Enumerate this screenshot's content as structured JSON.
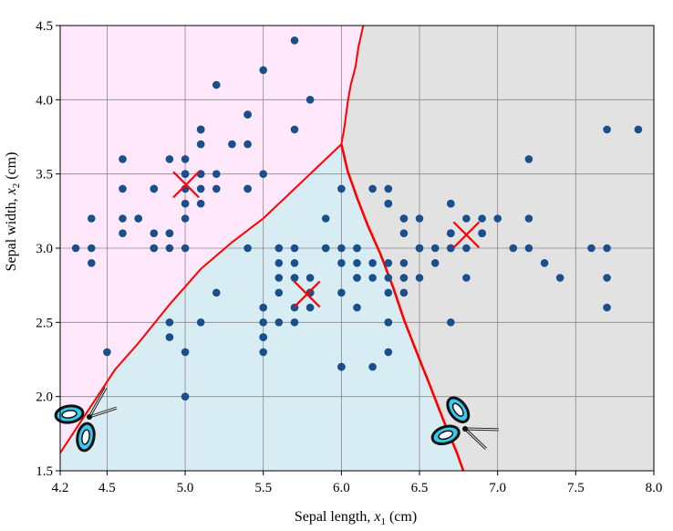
{
  "chart_data": {
    "type": "scatter",
    "title": "",
    "xlabel": {
      "main": "Sepal length, ",
      "var": "x",
      "sub": "1",
      "unit": " (cm)"
    },
    "ylabel": {
      "main": "Sepal width, ",
      "var": "x",
      "sub": "2",
      "unit": " (cm)"
    },
    "xlim": [
      4.2,
      8.0
    ],
    "ylim": [
      1.5,
      4.5
    ],
    "xticks": [
      4.2,
      4.5,
      5.0,
      5.5,
      6.0,
      6.5,
      7.0,
      7.5,
      8.0
    ],
    "xtick_labels": [
      "4.2",
      "4.5",
      "5.0",
      "5.5",
      "6.0",
      "6.5",
      "7.0",
      "7.5",
      "8.0"
    ],
    "yticks": [
      1.5,
      2.0,
      2.5,
      3.0,
      3.5,
      4.0,
      4.5
    ],
    "ytick_labels": [
      "1.5",
      "2.0",
      "2.5",
      "3.0",
      "3.5",
      "4.0",
      "4.5"
    ],
    "grid": true,
    "colors": {
      "region_setosa": "#ffe8fb",
      "region_versicolor": "#d8ecf3",
      "region_virginica": "#e2e2e2",
      "points": "#1a4f8e",
      "boundary": "#ff0000",
      "centroid": "#ff0000",
      "grid": "#888888",
      "scissors_handle": "#3ac9ee"
    },
    "points": [
      [
        5.1,
        3.5
      ],
      [
        4.9,
        3.0
      ],
      [
        4.7,
        3.2
      ],
      [
        4.6,
        3.1
      ],
      [
        5.0,
        3.6
      ],
      [
        5.4,
        3.9
      ],
      [
        4.6,
        3.4
      ],
      [
        5.0,
        3.4
      ],
      [
        4.4,
        2.9
      ],
      [
        4.9,
        3.1
      ],
      [
        5.4,
        3.7
      ],
      [
        4.8,
        3.4
      ],
      [
        4.8,
        3.0
      ],
      [
        4.3,
        3.0
      ],
      [
        5.8,
        4.0
      ],
      [
        5.7,
        4.4
      ],
      [
        5.4,
        3.9
      ],
      [
        5.1,
        3.5
      ],
      [
        5.7,
        3.8
      ],
      [
        5.1,
        3.8
      ],
      [
        5.4,
        3.4
      ],
      [
        5.1,
        3.7
      ],
      [
        4.6,
        3.6
      ],
      [
        5.1,
        3.3
      ],
      [
        4.8,
        3.4
      ],
      [
        5.0,
        3.0
      ],
      [
        5.0,
        3.4
      ],
      [
        5.2,
        3.5
      ],
      [
        5.2,
        3.4
      ],
      [
        4.7,
        3.2
      ],
      [
        4.8,
        3.1
      ],
      [
        5.4,
        3.4
      ],
      [
        5.2,
        4.1
      ],
      [
        5.5,
        4.2
      ],
      [
        4.9,
        3.1
      ],
      [
        5.0,
        3.2
      ],
      [
        5.5,
        3.5
      ],
      [
        4.9,
        3.6
      ],
      [
        4.4,
        3.0
      ],
      [
        5.1,
        3.4
      ],
      [
        5.0,
        3.5
      ],
      [
        4.5,
        2.3
      ],
      [
        4.4,
        3.2
      ],
      [
        5.0,
        3.5
      ],
      [
        5.1,
        3.8
      ],
      [
        4.8,
        3.0
      ],
      [
        5.1,
        3.8
      ],
      [
        4.6,
        3.2
      ],
      [
        5.3,
        3.7
      ],
      [
        5.0,
        3.3
      ],
      [
        7.0,
        3.2
      ],
      [
        6.4,
        3.2
      ],
      [
        6.9,
        3.1
      ],
      [
        5.5,
        2.3
      ],
      [
        6.5,
        2.8
      ],
      [
        5.7,
        2.8
      ],
      [
        6.3,
        3.3
      ],
      [
        4.9,
        2.4
      ],
      [
        6.6,
        2.9
      ],
      [
        5.2,
        2.7
      ],
      [
        5.0,
        2.0
      ],
      [
        5.9,
        3.0
      ],
      [
        6.0,
        2.2
      ],
      [
        6.1,
        2.9
      ],
      [
        5.6,
        2.9
      ],
      [
        6.7,
        3.1
      ],
      [
        5.6,
        3.0
      ],
      [
        5.8,
        2.7
      ],
      [
        6.2,
        2.2
      ],
      [
        5.6,
        2.5
      ],
      [
        5.9,
        3.2
      ],
      [
        6.1,
        2.8
      ],
      [
        6.3,
        2.5
      ],
      [
        6.1,
        2.8
      ],
      [
        6.4,
        2.9
      ],
      [
        6.6,
        3.0
      ],
      [
        6.8,
        2.8
      ],
      [
        6.7,
        3.0
      ],
      [
        6.0,
        2.9
      ],
      [
        5.7,
        2.6
      ],
      [
        5.5,
        2.4
      ],
      [
        5.5,
        2.4
      ],
      [
        5.8,
        2.7
      ],
      [
        6.0,
        2.7
      ],
      [
        5.4,
        3.0
      ],
      [
        6.0,
        3.4
      ],
      [
        6.7,
        3.1
      ],
      [
        6.3,
        2.3
      ],
      [
        5.6,
        3.0
      ],
      [
        5.5,
        2.5
      ],
      [
        5.5,
        2.6
      ],
      [
        6.1,
        3.0
      ],
      [
        5.8,
        2.6
      ],
      [
        5.0,
        2.3
      ],
      [
        5.6,
        2.7
      ],
      [
        5.7,
        3.0
      ],
      [
        5.7,
        2.9
      ],
      [
        6.2,
        2.9
      ],
      [
        5.1,
        2.5
      ],
      [
        5.7,
        2.8
      ],
      [
        6.3,
        3.3
      ],
      [
        5.8,
        2.7
      ],
      [
        7.1,
        3.0
      ],
      [
        6.3,
        2.9
      ],
      [
        6.5,
        3.0
      ],
      [
        7.6,
        3.0
      ],
      [
        4.9,
        2.5
      ],
      [
        7.3,
        2.9
      ],
      [
        6.7,
        2.5
      ],
      [
        7.2,
        3.6
      ],
      [
        6.5,
        3.2
      ],
      [
        6.4,
        2.7
      ],
      [
        6.8,
        3.0
      ],
      [
        5.7,
        2.5
      ],
      [
        5.8,
        2.8
      ],
      [
        6.4,
        3.2
      ],
      [
        6.5,
        3.0
      ],
      [
        7.7,
        3.8
      ],
      [
        7.7,
        2.6
      ],
      [
        6.0,
        2.2
      ],
      [
        6.9,
        3.2
      ],
      [
        5.6,
        2.8
      ],
      [
        7.7,
        2.8
      ],
      [
        6.3,
        2.7
      ],
      [
        6.7,
        3.3
      ],
      [
        7.2,
        3.2
      ],
      [
        6.2,
        2.8
      ],
      [
        6.1,
        3.0
      ],
      [
        6.4,
        2.8
      ],
      [
        7.2,
        3.0
      ],
      [
        7.4,
        2.8
      ],
      [
        7.9,
        3.8
      ],
      [
        6.4,
        2.8
      ],
      [
        6.3,
        2.8
      ],
      [
        6.1,
        2.6
      ],
      [
        7.7,
        3.0
      ],
      [
        6.3,
        3.4
      ],
      [
        6.4,
        3.1
      ],
      [
        6.0,
        3.0
      ],
      [
        6.9,
        3.1
      ],
      [
        6.7,
        3.1
      ],
      [
        6.9,
        3.1
      ],
      [
        5.8,
        2.7
      ],
      [
        6.8,
        3.2
      ],
      [
        6.7,
        3.3
      ],
      [
        6.7,
        3.0
      ],
      [
        6.3,
        2.5
      ],
      [
        6.5,
        3.0
      ],
      [
        6.2,
        3.4
      ],
      [
        5.9,
        3.0
      ]
    ],
    "centroids": [
      [
        5.006,
        3.428
      ],
      [
        5.78,
        2.69
      ],
      [
        6.8,
        3.09
      ]
    ],
    "boundary_setosa": [
      [
        4.2,
        1.62
      ],
      [
        4.55,
        2.18
      ],
      [
        4.7,
        2.36
      ],
      [
        4.9,
        2.62
      ],
      [
        5.1,
        2.86
      ],
      [
        5.3,
        3.04
      ],
      [
        5.5,
        3.2
      ],
      [
        5.7,
        3.4
      ],
      [
        6.0,
        3.7
      ]
    ],
    "boundary_virginica_upper": [
      [
        6.0,
        3.7
      ],
      [
        6.02,
        3.82
      ],
      [
        6.04,
        3.98
      ],
      [
        6.06,
        4.1
      ],
      [
        6.09,
        4.22
      ],
      [
        6.11,
        4.36
      ],
      [
        6.14,
        4.5
      ]
    ],
    "boundary_virginica_lower": [
      [
        6.0,
        3.7
      ],
      [
        6.04,
        3.52
      ],
      [
        6.1,
        3.34
      ],
      [
        6.17,
        3.15
      ],
      [
        6.25,
        2.96
      ],
      [
        6.33,
        2.74
      ],
      [
        6.4,
        2.52
      ],
      [
        6.47,
        2.33
      ],
      [
        6.55,
        2.12
      ],
      [
        6.62,
        1.93
      ],
      [
        6.68,
        1.77
      ],
      [
        6.74,
        1.62
      ],
      [
        6.78,
        1.5
      ]
    ]
  }
}
